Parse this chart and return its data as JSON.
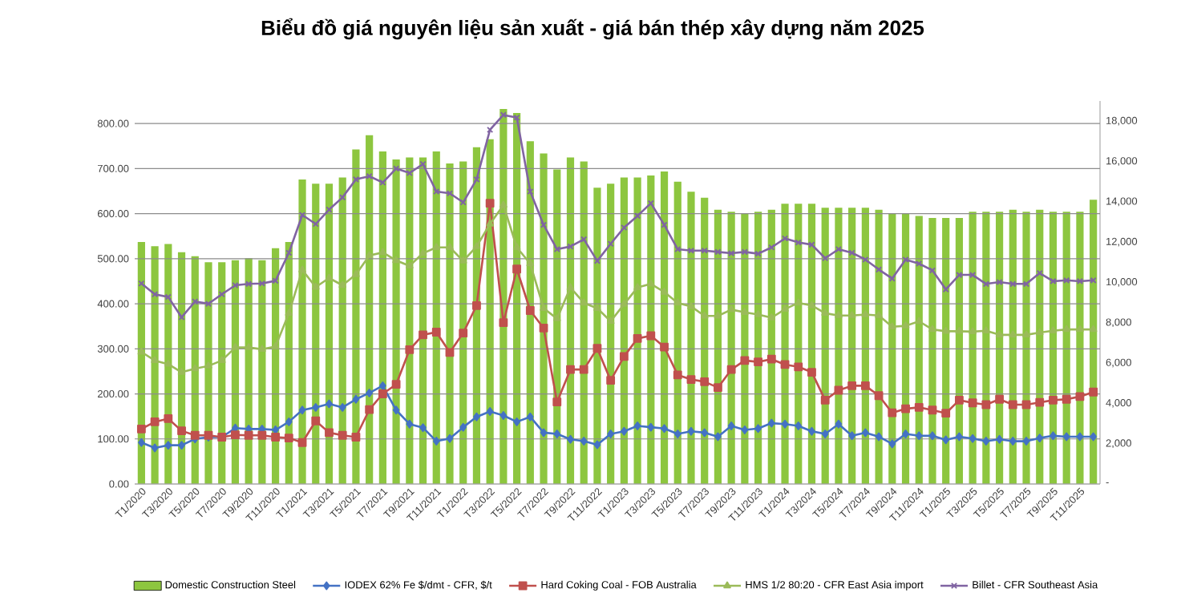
{
  "chart_data": {
    "type": "line",
    "title": "Biểu đồ giá nguyên liệu sản xuất - giá bán thép xây dựng năm 2025",
    "categories": [
      "T1/2020",
      null,
      "T3/2020",
      null,
      "T5/2020",
      null,
      "T7/2020",
      null,
      "T9/2020",
      null,
      "T11/2020",
      null,
      "T1/2021",
      null,
      "T3/2021",
      null,
      "T5/2021",
      null,
      "T7/2021",
      null,
      "T9/2021",
      null,
      "T11/2021",
      null,
      "T1/2022",
      null,
      "T3/2022",
      null,
      "T5/2022",
      null,
      "T7/2022",
      null,
      "T9/2022",
      null,
      "T11/2022",
      null,
      "T1/2023",
      null,
      "T3/2023",
      null,
      "T5/2023",
      null,
      "T7/2023",
      null,
      "T9/2023",
      null,
      "T11/2023",
      null,
      "T1/2024",
      null,
      "T3/2024",
      null,
      "T5/2024",
      null,
      "T7/2024",
      null,
      "T9/2024",
      null,
      "T11/2024",
      null,
      "T1/2025",
      null,
      "T3/2025",
      null,
      "T5/2025",
      null,
      "T7/2025",
      null,
      "T9/2025",
      null,
      "T11/2025",
      null
    ],
    "series": [
      {
        "name": "Domestic Construction Steel",
        "type": "bar",
        "axis": "y2",
        "color": "#8dc63f",
        "values": [
          12000,
          11800,
          11900,
          11500,
          11300,
          11000,
          11000,
          11100,
          11200,
          11100,
          11700,
          12000,
          15100,
          14900,
          14900,
          15200,
          16600,
          17300,
          16500,
          16100,
          16200,
          16200,
          16500,
          15900,
          16000,
          16700,
          17100,
          18600,
          18400,
          17000,
          16400,
          15600,
          16200,
          16000,
          14700,
          14900,
          15200,
          15200,
          15300,
          15500,
          15000,
          14500,
          14200,
          13600,
          13500,
          13400,
          13500,
          13600,
          13900,
          13900,
          13900,
          13700,
          13700,
          13700,
          13700,
          13600,
          13400,
          13400,
          13300,
          13200,
          13200,
          13200,
          13500,
          13500,
          13500,
          13600,
          13500,
          13600,
          13500,
          13500,
          13500,
          14100
        ]
      },
      {
        "name": "IODEX 62% Fe $/dmt - CFR, $/t",
        "marker": "diamond",
        "color": "#4472c4",
        "values": [
          92,
          80,
          86,
          86,
          100,
          104,
          104,
          124,
          122,
          122,
          120,
          138,
          164,
          170,
          178,
          170,
          188,
          202,
          218,
          164,
          133,
          125,
          95,
          101,
          126,
          149,
          161,
          152,
          138,
          149,
          114,
          111,
          99,
          95,
          87,
          111,
          117,
          129,
          126,
          123,
          111,
          117,
          114,
          105,
          129,
          120,
          123,
          135,
          133,
          129,
          117,
          111,
          133,
          107,
          114,
          105,
          89,
          111,
          107,
          107,
          98,
          105,
          101,
          95,
          99,
          95,
          95,
          102,
          107,
          105,
          105,
          105
        ]
      },
      {
        "name": "Hard Coking Coal - FOB Australia",
        "marker": "square",
        "color": "#c0504d",
        "values": [
          122,
          138,
          145,
          118,
          108,
          108,
          104,
          109,
          108,
          108,
          104,
          102,
          92,
          140,
          114,
          108,
          104,
          165,
          200,
          221,
          298,
          331,
          337,
          292,
          335,
          396,
          623,
          358,
          477,
          385,
          346,
          182,
          254,
          254,
          301,
          230,
          283,
          323,
          329,
          304,
          242,
          232,
          227,
          214,
          254,
          274,
          271,
          277,
          265,
          260,
          248,
          186,
          208,
          218,
          218,
          196,
          158,
          167,
          170,
          164,
          157,
          186,
          180,
          176,
          188,
          176,
          176,
          181,
          186,
          188,
          194,
          204
        ]
      },
      {
        "name": "HMS 1/2 80:20 - CFR East Asia import",
        "marker": "triangle",
        "color": "#9bbb59",
        "values": [
          293,
          274,
          266,
          248,
          256,
          262,
          274,
          303,
          303,
          299,
          305,
          379,
          475,
          437,
          457,
          441,
          465,
          507,
          514,
          496,
          484,
          512,
          525,
          525,
          495,
          527,
          577,
          619,
          525,
          489,
          390,
          367,
          436,
          402,
          390,
          361,
          399,
          436,
          444,
          426,
          402,
          394,
          373,
          373,
          387,
          381,
          376,
          369,
          388,
          402,
          396,
          379,
          374,
          374,
          376,
          374,
          349,
          351,
          361,
          343,
          339,
          339,
          338,
          340,
          331,
          331,
          331,
          336,
          340,
          343,
          343,
          343
        ]
      },
      {
        "name": "Billet - CFR Southeast Asia",
        "marker": "cross",
        "color": "#8064a2",
        "values": [
          445,
          421,
          415,
          370,
          405,
          400,
          421,
          441,
          444,
          445,
          451,
          513,
          597,
          577,
          609,
          636,
          676,
          683,
          669,
          700,
          690,
          710,
          649,
          645,
          625,
          676,
          786,
          819,
          813,
          649,
          575,
          521,
          527,
          543,
          495,
          533,
          569,
          595,
          623,
          575,
          521,
          518,
          518,
          515,
          512,
          515,
          511,
          525,
          545,
          536,
          531,
          501,
          521,
          513,
          498,
          476,
          456,
          498,
          489,
          474,
          432,
          464,
          464,
          444,
          448,
          444,
          444,
          468,
          450,
          452,
          450,
          452
        ]
      }
    ],
    "ylim": [
      0,
      850
    ],
    "yticks": [
      {
        "value": 0,
        "label": "0.00"
      },
      {
        "value": 100,
        "label": "100.00"
      },
      {
        "value": 200,
        "label": "200.00"
      },
      {
        "value": 300,
        "label": "300.00"
      },
      {
        "value": 400,
        "label": "400.00"
      },
      {
        "value": 500,
        "label": "500.00"
      },
      {
        "value": 600,
        "label": "600.00"
      },
      {
        "value": 700,
        "label": "700.00"
      },
      {
        "value": 800,
        "label": "800.00"
      }
    ],
    "y2lim": [
      0,
      19000
    ],
    "y2ticks": [
      {
        "value": 0,
        "label": "-"
      },
      {
        "value": 2000,
        "label": "2,000"
      },
      {
        "value": 4000,
        "label": "4,000"
      },
      {
        "value": 6000,
        "label": "6,000"
      },
      {
        "value": 8000,
        "label": "8,000"
      },
      {
        "value": 10000,
        "label": "10,000"
      },
      {
        "value": 12000,
        "label": "12,000"
      },
      {
        "value": 14000,
        "label": "14,000"
      },
      {
        "value": 16000,
        "label": "16,000"
      },
      {
        "value": 18000,
        "label": "18,000"
      }
    ],
    "grid": "y",
    "legend": "bottom",
    "line_style": "solid"
  }
}
